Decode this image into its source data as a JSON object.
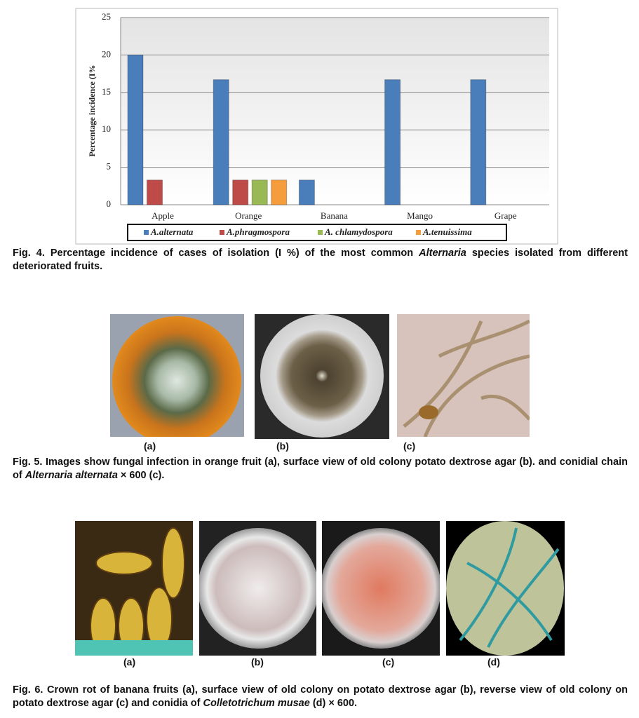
{
  "chart_data": {
    "type": "bar",
    "y_label": "Percentage incidence (I%",
    "categories": [
      "Apple",
      "Orange",
      "Banana",
      "Mango",
      "Grape"
    ],
    "series": [
      {
        "name": "A.alternata",
        "color": "#4a7ebb",
        "values": [
          20,
          16.7,
          3.3,
          16.7,
          16.7
        ]
      },
      {
        "name": "A.phragmospora",
        "color": "#be4b48",
        "values": [
          3.3,
          3.3,
          0,
          0,
          0
        ]
      },
      {
        "name": "A.  chlamydospora",
        "color": "#98b954",
        "values": [
          0,
          3.3,
          0,
          0,
          0
        ]
      },
      {
        "name": "A.tenuissima",
        "color": "#f59d3d",
        "values": [
          0,
          3.3,
          0,
          0,
          0
        ]
      }
    ],
    "ylim": [
      0,
      25
    ],
    "yticks": [
      0,
      5,
      10,
      15,
      20,
      25
    ],
    "grid": true,
    "legend": "bottom"
  },
  "figure4": {
    "caption": [
      "Fig. 4. Percentage incidence of cases of isolation (I %) of the most common ",
      "Alternaria",
      " species isolated from different deteriorated fruits."
    ]
  },
  "figure5": {
    "panel_labels": [
      "(a)",
      "(b)",
      "(c)"
    ],
    "caption": [
      "Fig. 5. Images show fungal infection in orange fruit (a), surface view of old colony potato dextrose agar (b). and conidial chain  of ",
      "Alternaria alternata",
      " × 600 (c)."
    ]
  },
  "figure6": {
    "panel_labels": [
      "(a)",
      "(b)",
      "(c)",
      "(d)"
    ],
    "caption": [
      "Fig. 6. Crown rot of banana fruits (a), surface view of old colony on potato dextrose agar (b), reverse view of old colony on potato dextrose agar (c) and conidia of ",
      "Colletotrichum musae",
      " (d) × 600."
    ]
  }
}
